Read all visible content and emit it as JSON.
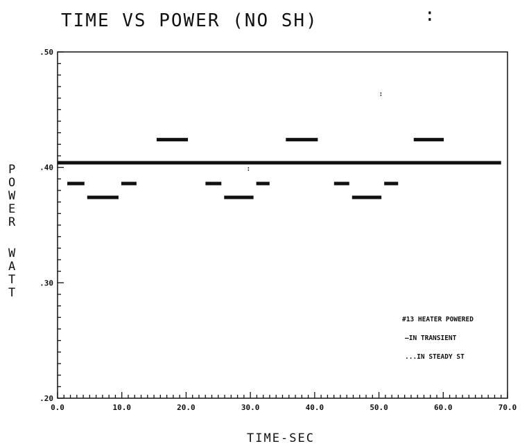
{
  "chart_data": {
    "type": "line",
    "title": "TIME VS POWER (NO SH)",
    "xlabel": "TIME-SEC",
    "ylabel": "POWER WATT",
    "xlim": [
      0,
      70
    ],
    "ylim": [
      0.2,
      0.5
    ],
    "x_ticks": [
      "0.0",
      "10.0",
      "20.0",
      "30.0",
      "40.0",
      "50.0",
      "60.0",
      "70.0"
    ],
    "y_ticks": [
      ".20",
      ".30",
      ".40",
      ".50"
    ],
    "legend": {
      "placement": "lower-right",
      "entries": [
        "#13 HEATER POWERED",
        "—IN TRANSIENT",
        "...IN STEADY ST"
      ]
    },
    "series": [
      {
        "name": "IN TRANSIENT",
        "x": [
          0,
          69
        ],
        "y": [
          0.404,
          0.404
        ]
      },
      {
        "name": "IN STEADY ST",
        "segments": [
          {
            "x0": 1.3,
            "x1": 4.4,
            "y": 0.386
          },
          {
            "x0": 4.4,
            "x1": 9.7,
            "y": 0.374
          },
          {
            "x0": 9.7,
            "x1": 12.5,
            "y": 0.386
          },
          {
            "x0": 15.2,
            "x1": 20.5,
            "y": 0.424
          },
          {
            "x0": 22.8,
            "x1": 25.7,
            "y": 0.386
          },
          {
            "x0": 25.7,
            "x1": 30.7,
            "y": 0.374
          },
          {
            "x0": 30.7,
            "x1": 33.2,
            "y": 0.386
          },
          {
            "x0": 35.3,
            "x1": 40.7,
            "y": 0.424
          },
          {
            "x0": 42.8,
            "x1": 45.6,
            "y": 0.386
          },
          {
            "x0": 45.6,
            "x1": 50.6,
            "y": 0.374
          },
          {
            "x0": 50.6,
            "x1": 53.2,
            "y": 0.386
          },
          {
            "x0": 55.2,
            "x1": 60.3,
            "y": 0.424
          }
        ]
      }
    ],
    "annotations": [
      {
        "x": 29.7,
        "y": 0.397,
        "text": ":"
      },
      {
        "x": 50.3,
        "y": 0.462,
        "text": ":"
      }
    ],
    "corner_mark": ":"
  }
}
